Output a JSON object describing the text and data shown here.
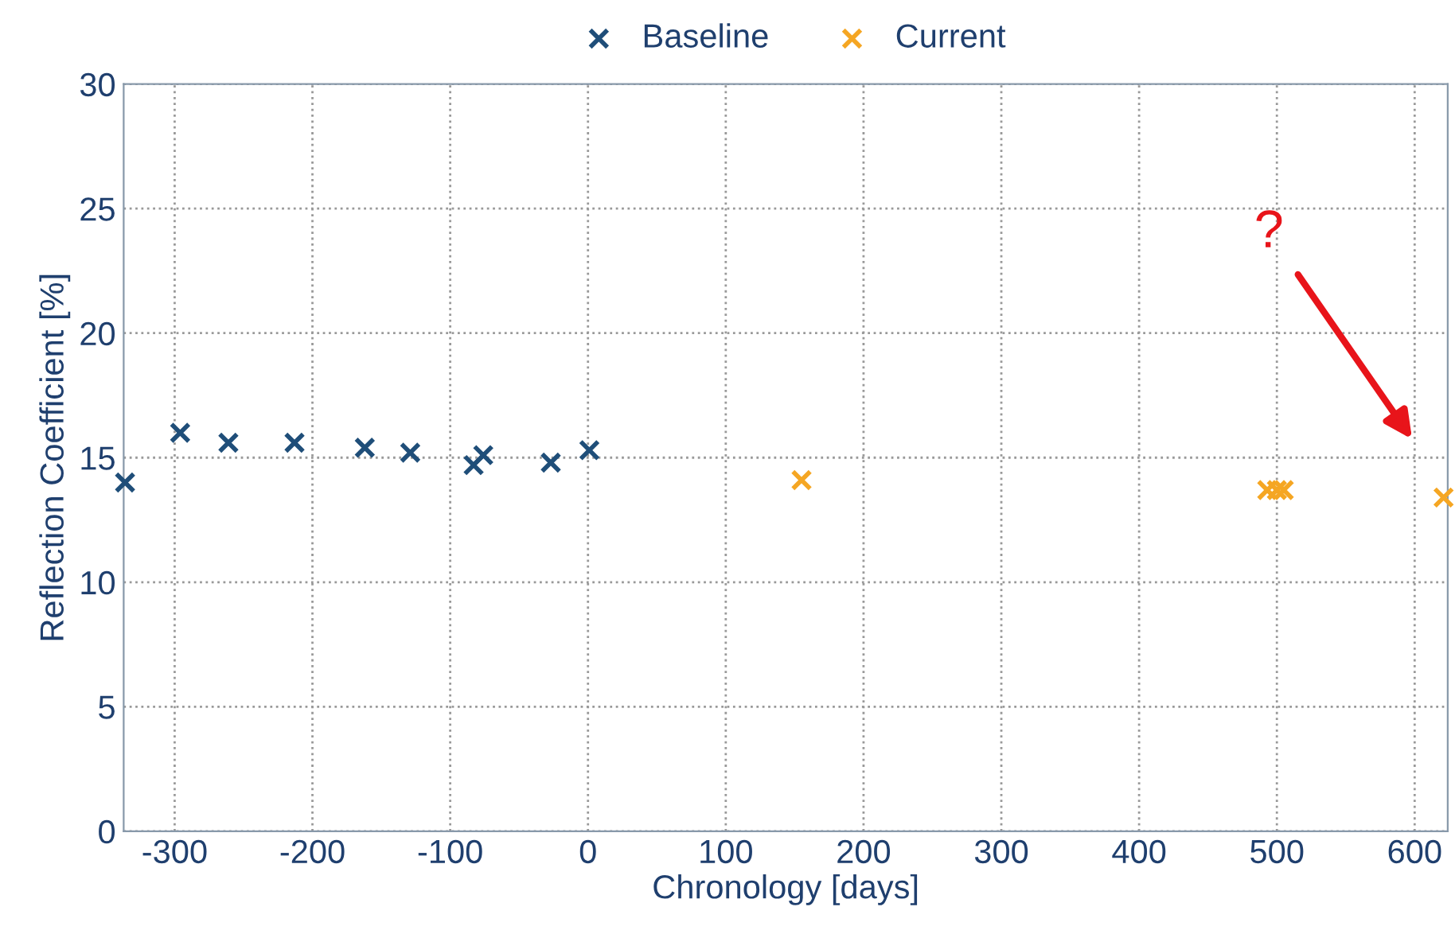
{
  "chart_data": {
    "type": "scatter",
    "xlabel": "Chronology [days]",
    "ylabel": "Reflection Coefficient [%]",
    "series": [
      {
        "name": "Baseline",
        "color": "#1f4e79",
        "x": [
          -336,
          -296,
          -261,
          -213,
          -162,
          -129,
          -83,
          -76,
          -27,
          1
        ],
        "values": [
          14.0,
          16.0,
          15.6,
          15.6,
          15.4,
          15.2,
          14.7,
          15.1,
          14.8,
          15.3
        ]
      },
      {
        "name": "Current",
        "color": "#f5a623",
        "x": [
          155,
          493,
          500,
          505,
          621
        ],
        "values": [
          14.1,
          13.7,
          13.7,
          13.7,
          13.4
        ]
      }
    ],
    "xlim": [
      -337,
      624
    ],
    "xticks": [
      -300,
      -200,
      -100,
      0,
      100,
      200,
      300,
      400,
      500,
      600
    ],
    "ylim": [
      0,
      30
    ],
    "yticks": [
      0,
      5,
      10,
      15,
      20,
      25,
      30
    ],
    "annotations": [
      "?"
    ],
    "grid": true,
    "legend": "top",
    "marker": "cross",
    "line_style": "dotted"
  }
}
